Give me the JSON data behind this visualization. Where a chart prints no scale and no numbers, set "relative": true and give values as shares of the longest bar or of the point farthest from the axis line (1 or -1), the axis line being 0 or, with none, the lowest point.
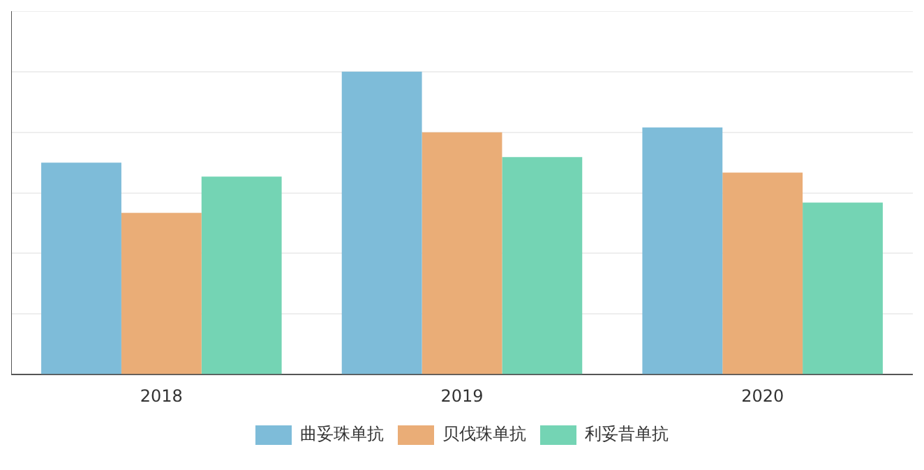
{
  "chart_data": {
    "type": "bar",
    "relative": true,
    "categories": [
      "2018",
      "2019",
      "2020"
    ],
    "series": [
      {
        "name": "曲妥珠单抗",
        "color": "#7ebcd9",
        "values": [
          0.7,
          1,
          0.816
        ]
      },
      {
        "name": "贝伐珠单抗",
        "color": "#eaad77",
        "values": [
          0.534,
          0.8,
          0.667
        ]
      },
      {
        "name": "利妥昔单抗",
        "color": "#74d4b4",
        "values": [
          0.654,
          0.718,
          0.568
        ]
      }
    ],
    "grid": "y",
    "legend": "bottom"
  }
}
